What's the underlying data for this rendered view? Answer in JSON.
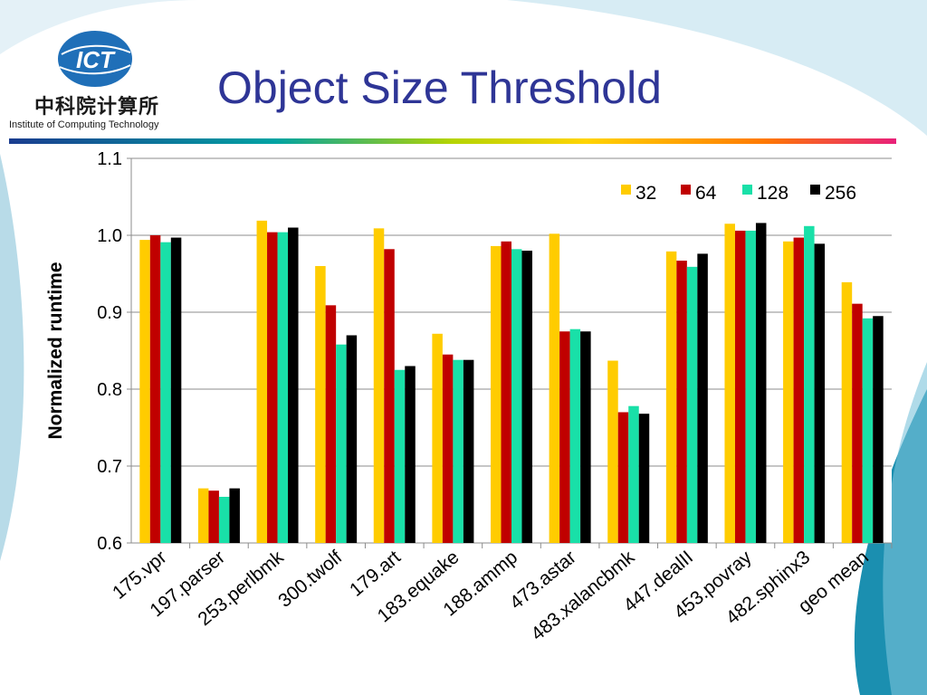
{
  "header": {
    "logo_text": "ICT",
    "org_chinese": "中科院计算所",
    "institute": "Institute of Computing Technology",
    "title": "Object Size Threshold"
  },
  "colors": {
    "title": "#2e3596",
    "series": [
      "#ffcc00",
      "#c00000",
      "#19e0a8",
      "#000000"
    ],
    "logo_blue": "#1f6fb8"
  },
  "chart_data": {
    "type": "bar",
    "title": "",
    "xlabel": "",
    "ylabel": "Normalized runtime",
    "ylim": [
      0.6,
      1.1
    ],
    "yticks": [
      "0.6",
      "0.7",
      "0.8",
      "0.9",
      "1.0",
      "1.1"
    ],
    "grid": true,
    "legend": "top-right",
    "categories": [
      "175.vpr",
      "197.parser",
      "253.perlbmk",
      "300.twolf",
      "179.art",
      "183.equake",
      "188.ammp",
      "473.astar",
      "483.xalancbmk",
      "447.dealII",
      "453.povray",
      "482.sphinx3",
      "geo mean"
    ],
    "series": [
      {
        "name": "32",
        "values": [
          0.994,
          0.671,
          1.019,
          0.96,
          1.009,
          0.872,
          0.986,
          1.002,
          0.837,
          0.979,
          1.015,
          0.992,
          0.939
        ]
      },
      {
        "name": "64",
        "values": [
          1.0,
          0.668,
          1.004,
          0.909,
          0.982,
          0.845,
          0.992,
          0.875,
          0.77,
          0.967,
          1.006,
          0.997,
          0.911
        ]
      },
      {
        "name": "128",
        "values": [
          0.991,
          0.66,
          1.004,
          0.858,
          0.825,
          0.838,
          0.982,
          0.878,
          0.778,
          0.959,
          1.006,
          1.012,
          0.892
        ]
      },
      {
        "name": "256",
        "values": [
          0.997,
          0.671,
          1.01,
          0.87,
          0.83,
          0.838,
          0.98,
          0.875,
          0.768,
          0.976,
          1.016,
          0.989,
          0.895
        ]
      }
    ]
  }
}
